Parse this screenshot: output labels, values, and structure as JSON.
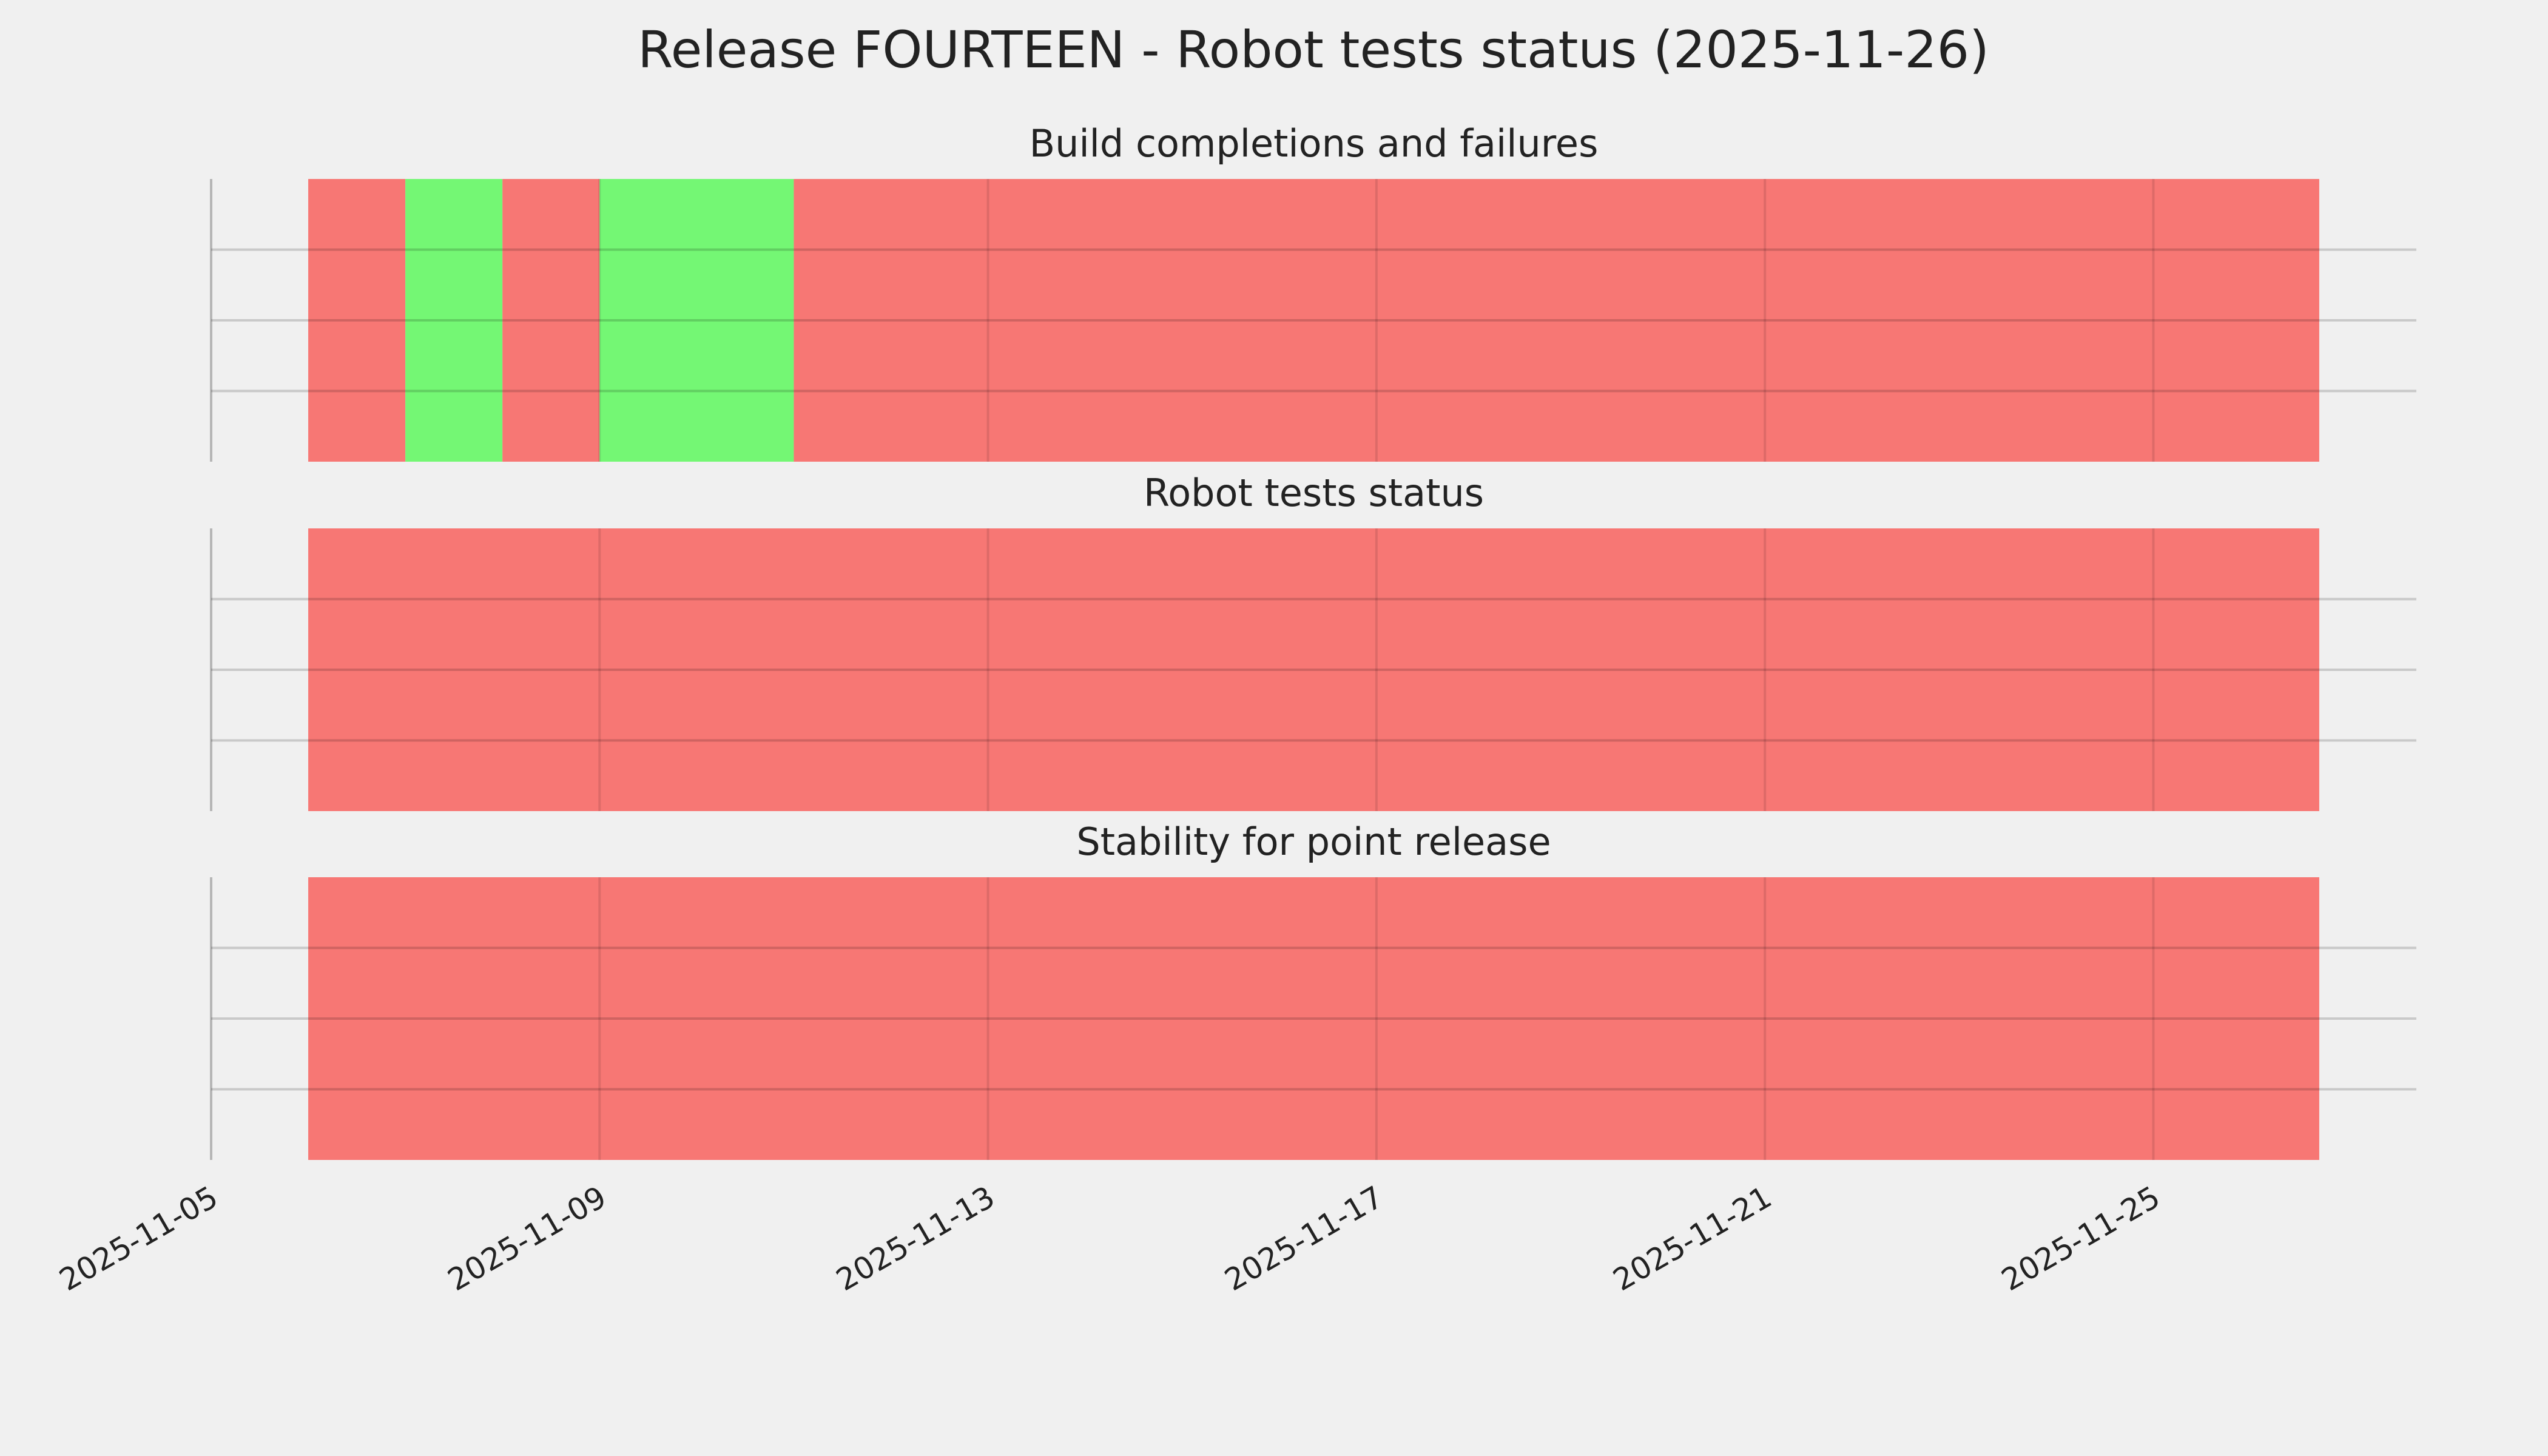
{
  "title": "Release FOURTEEN - Robot tests status (2025-11-26)",
  "chart_data": [
    {
      "type": "timeline",
      "title": "Build completions and failures",
      "segments": [
        {
          "start": "2025-11-06",
          "end": "2025-11-07",
          "color": "#f77774"
        },
        {
          "start": "2025-11-07",
          "end": "2025-11-08",
          "color": "#74f774"
        },
        {
          "start": "2025-11-08",
          "end": "2025-11-09",
          "color": "#f77774"
        },
        {
          "start": "2025-11-09",
          "end": "2025-11-11",
          "color": "#74f774"
        },
        {
          "start": "2025-11-11",
          "end": "2025-11-26T17:00",
          "color": "#f77774"
        }
      ],
      "xlim": [
        "2025-11-05",
        "2025-11-27T17:00"
      ],
      "xticks": [
        "2025-11-05",
        "2025-11-09",
        "2025-11-13",
        "2025-11-17",
        "2025-11-21",
        "2025-11-25"
      ],
      "ylim": [
        0,
        1
      ],
      "yticks": [
        0.25,
        0.5,
        0.75
      ],
      "grid": true,
      "show_xtick_labels": false
    },
    {
      "type": "timeline",
      "title": "Robot tests status",
      "segments": [
        {
          "start": "2025-11-06",
          "end": "2025-11-26T17:00",
          "color": "#f77774"
        }
      ],
      "xlim": [
        "2025-11-05",
        "2025-11-27T17:00"
      ],
      "xticks": [
        "2025-11-05",
        "2025-11-09",
        "2025-11-13",
        "2025-11-17",
        "2025-11-21",
        "2025-11-25"
      ],
      "ylim": [
        0,
        1
      ],
      "yticks": [
        0.25,
        0.5,
        0.75
      ],
      "grid": true,
      "show_xtick_labels": false
    },
    {
      "type": "timeline",
      "title": "Stability for point release",
      "segments": [
        {
          "start": "2025-11-06",
          "end": "2025-11-26T17:00",
          "color": "#f77774"
        }
      ],
      "xlim": [
        "2025-11-05",
        "2025-11-27T17:00"
      ],
      "xticks": [
        "2025-11-05",
        "2025-11-09",
        "2025-11-13",
        "2025-11-17",
        "2025-11-21",
        "2025-11-25"
      ],
      "ylim": [
        0,
        1
      ],
      "yticks": [
        0.25,
        0.5,
        0.75
      ],
      "grid": true,
      "show_xtick_labels": true
    }
  ]
}
